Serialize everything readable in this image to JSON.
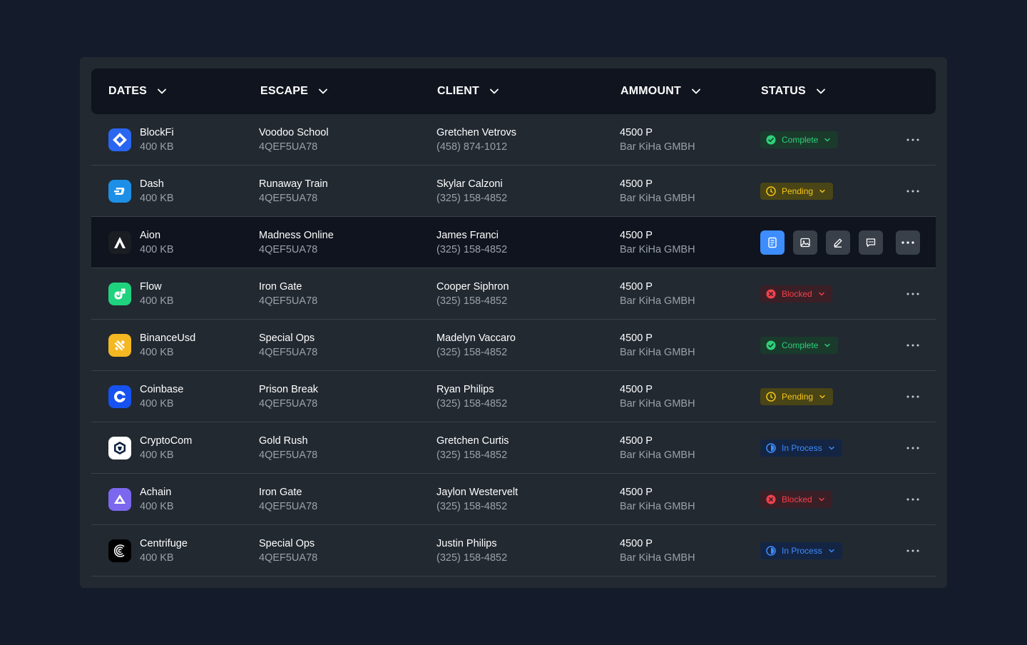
{
  "headers": {
    "dates": "DATES",
    "escape": "ESCAPE",
    "client": "CLIENT",
    "amount": "AMMOUNT",
    "status": "STATUS"
  },
  "status_colors": {
    "Complete": "#2fd07a",
    "Pending": "#f5c518",
    "Blocked": "#f0424e",
    "In Process": "#3d8dff"
  },
  "rows": [
    {
      "coin": "BlockFi",
      "size": "400 KB",
      "escape": "Voodoo School",
      "code": "4QEF5UA78",
      "client": "Gretchen Vetrovs",
      "phone": "(458) 874-1012",
      "amount": "4500 P",
      "company": "Bar KiHa GMBH",
      "status": "Complete",
      "icon": "blockfi-icon"
    },
    {
      "coin": "Dash",
      "size": "400 KB",
      "escape": "Runaway Train",
      "code": "4QEF5UA78",
      "client": "Skylar Calzoni",
      "phone": "(325) 158-4852",
      "amount": "4500 P",
      "company": "Bar KiHa GMBH",
      "status": "Pending",
      "icon": "dash-icon"
    },
    {
      "coin": "Aion",
      "size": "400 KB",
      "escape": "Madness Online",
      "code": "4QEF5UA78",
      "client": "James Franci",
      "phone": "(325) 158-4852",
      "amount": "4500 P",
      "company": "Bar KiHa GMBH",
      "status": "",
      "icon": "aion-icon",
      "active": true
    },
    {
      "coin": "Flow",
      "size": "400 KB",
      "escape": "Iron Gate",
      "code": "4QEF5UA78",
      "client": "Cooper Siphron",
      "phone": "(325) 158-4852",
      "amount": "4500 P",
      "company": "Bar KiHa GMBH",
      "status": "Blocked",
      "icon": "flow-icon"
    },
    {
      "coin": "BinanceUsd",
      "size": "400 KB",
      "escape": "Special Ops",
      "code": "4QEF5UA78",
      "client": "Madelyn Vaccaro",
      "phone": "(325) 158-4852",
      "amount": "4500 P",
      "company": "Bar KiHa GMBH",
      "status": "Complete",
      "icon": "binanceusd-icon"
    },
    {
      "coin": "Coinbase",
      "size": "400 KB",
      "escape": "Prison Break",
      "code": "4QEF5UA78",
      "client": "Ryan Philips",
      "phone": "(325) 158-4852",
      "amount": "4500 P",
      "company": "Bar KiHa GMBH",
      "status": "Pending",
      "icon": "coinbase-icon"
    },
    {
      "coin": "CryptoCom",
      "size": "400 KB",
      "escape": "Gold Rush",
      "code": "4QEF5UA78",
      "client": "Gretchen Curtis",
      "phone": "(325) 158-4852",
      "amount": "4500 P",
      "company": "Bar KiHa GMBH",
      "status": "In Process",
      "icon": "cryptocom-icon"
    },
    {
      "coin": "Achain",
      "size": "400 KB",
      "escape": "Iron Gate",
      "code": "4QEF5UA78",
      "client": "Jaylon Westervelt",
      "phone": "(325) 158-4852",
      "amount": "4500 P",
      "company": "Bar KiHa GMBH",
      "status": "Blocked",
      "icon": "achain-icon"
    },
    {
      "coin": "Centrifuge",
      "size": "400 KB",
      "escape": "Special Ops",
      "code": "4QEF5UA78",
      "client": "Justin Philips",
      "phone": "(325) 158-4852",
      "amount": "4500 P",
      "company": "Bar KiHa GMBH",
      "status": "In Process",
      "icon": "centrifuge-icon"
    }
  ],
  "row_actions": [
    "document-icon",
    "image-icon",
    "edit-icon",
    "comment-icon",
    "more-icon"
  ]
}
